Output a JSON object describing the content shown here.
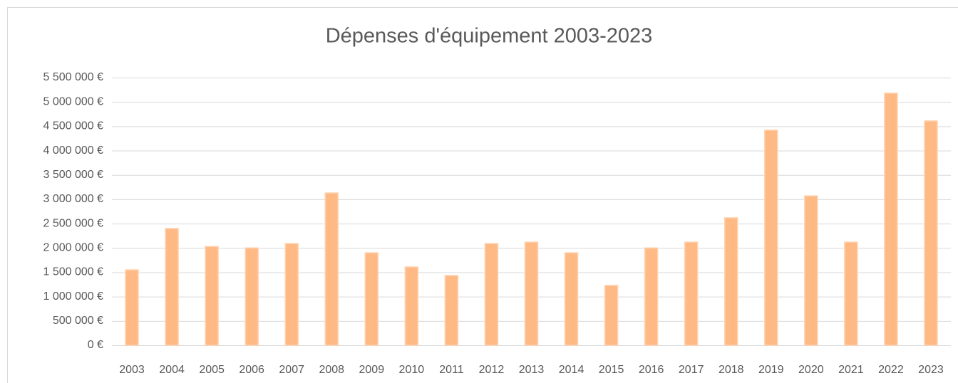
{
  "chart_data": {
    "type": "bar",
    "title": "Dépenses d'équipement 2003-2023",
    "categories": [
      "2003",
      "2004",
      "2005",
      "2006",
      "2007",
      "2008",
      "2009",
      "2010",
      "2011",
      "2012",
      "2013",
      "2014",
      "2015",
      "2016",
      "2017",
      "2018",
      "2019",
      "2020",
      "2021",
      "2022",
      "2023"
    ],
    "values": [
      1550000,
      2400000,
      2030000,
      2000000,
      2090000,
      3130000,
      1900000,
      1610000,
      1435000,
      2090000,
      2120000,
      1900000,
      1230000,
      2000000,
      2120000,
      2620000,
      4420000,
      3070000,
      2120000,
      5180000,
      4610000
    ],
    "color": "#ffb985",
    "ylim": [
      0,
      5500000
    ],
    "yticks": [
      {
        "value": 0,
        "label": "0 €"
      },
      {
        "value": 500000,
        "label": "500 000 €"
      },
      {
        "value": 1000000,
        "label": "1 000 000 €"
      },
      {
        "value": 1500000,
        "label": "1 500 000 €"
      },
      {
        "value": 2000000,
        "label": "2 000 000 €"
      },
      {
        "value": 2500000,
        "label": "2 500 000 €"
      },
      {
        "value": 3000000,
        "label": "3 000 000 €"
      },
      {
        "value": 3500000,
        "label": "3 500 000 €"
      },
      {
        "value": 4000000,
        "label": "4 000 000 €"
      },
      {
        "value": 4500000,
        "label": "4 500 000 €"
      },
      {
        "value": 5000000,
        "label": "5 000 000 €"
      },
      {
        "value": 5500000,
        "label": "5 500 000 €"
      }
    ],
    "grid": true
  }
}
